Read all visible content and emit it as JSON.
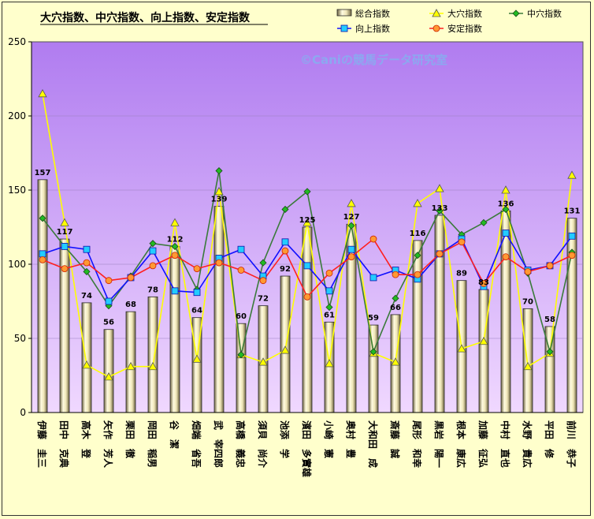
{
  "chart_data": {
    "type": "bar",
    "title": "大穴指数、中穴指数、向上指数、安定指数",
    "watermark": "©Caniの競馬データ研究室",
    "xlabel": "",
    "ylabel": "",
    "ylim": [
      0,
      250
    ],
    "yticks": [
      "0",
      "50",
      "100",
      "150",
      "200",
      "250"
    ],
    "grid": true,
    "legend_position": "top-right",
    "categories": [
      "伊藤　圭三",
      "田中　克典",
      "高木　登",
      "矢作　芳人",
      "栗田　徹",
      "岡田　稲男",
      "谷　潔",
      "畑端　省吾",
      "武　宰四郎",
      "高橋　義忠",
      "須貝　尚介",
      "池添　学",
      "濱田　多實雄",
      "小崎　憲",
      "奥村　豊",
      "大和田　成",
      "斎藤　誠",
      "尾形　和幸",
      "黒岩　陽一",
      "根本　康広",
      "加藤　征弘",
      "中村　直也",
      "水野　貴広",
      "平田　修",
      "前川　恭子"
    ],
    "series": [
      {
        "name": "総合指数",
        "kind": "bar",
        "color": "#c8c088",
        "values": [
          157,
          117,
          74,
          56,
          68,
          78,
          112,
          64,
          139,
          60,
          72,
          92,
          125,
          61,
          127,
          59,
          66,
          116,
          133,
          89,
          83,
          136,
          70,
          58,
          131
        ]
      },
      {
        "name": "大穴指数",
        "kind": "line",
        "color": "#ffff00",
        "marker": "triangle",
        "values": [
          215,
          128,
          32,
          24,
          31,
          31,
          128,
          36,
          149,
          39,
          34,
          42,
          128,
          33,
          141,
          40,
          34,
          141,
          151,
          43,
          48,
          150,
          31,
          40,
          160
        ]
      },
      {
        "name": "中穴指数",
        "kind": "line",
        "color": "#3a7a3a",
        "marker": "diamond",
        "values": [
          131,
          112,
          95,
          72,
          92,
          114,
          112,
          83,
          163,
          39,
          101,
          137,
          149,
          71,
          126,
          41,
          77,
          106,
          136,
          120,
          128,
          137,
          94,
          41,
          108
        ]
      },
      {
        "name": "向上指数",
        "kind": "line",
        "color": "#1010ff",
        "marker": "square",
        "values": [
          107,
          112,
          110,
          75,
          91,
          109,
          82,
          81,
          104,
          110,
          92,
          115,
          99,
          82,
          110,
          91,
          96,
          90,
          107,
          117,
          85,
          121,
          96,
          99,
          119
        ]
      },
      {
        "name": "安定指数",
        "kind": "line",
        "color": "#ff2020",
        "marker": "circle",
        "values": [
          103,
          97,
          101,
          89,
          91,
          99,
          106,
          97,
          101,
          96,
          89,
          109,
          78,
          94,
          105,
          117,
          93,
          93,
          107,
          115,
          87,
          105,
          95,
          99,
          106
        ]
      }
    ]
  }
}
